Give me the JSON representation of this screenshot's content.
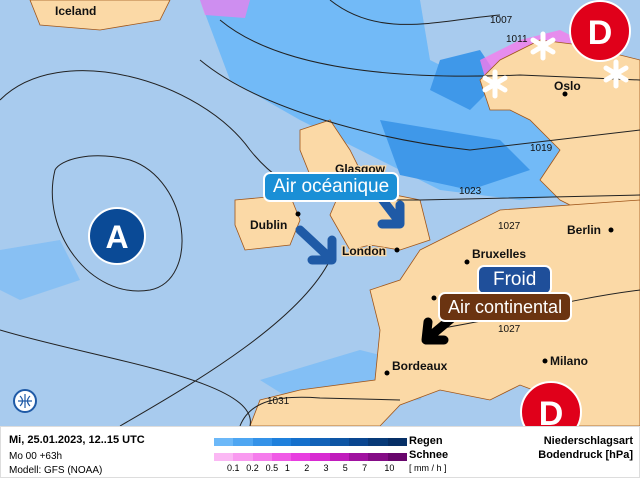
{
  "map": {
    "cities": [
      {
        "name": "Iceland"
      },
      {
        "name": "Oslo"
      },
      {
        "name": "Glasgow"
      },
      {
        "name": "Dublin"
      },
      {
        "name": "London"
      },
      {
        "name": "Bruxelles"
      },
      {
        "name": "Berlin"
      },
      {
        "name": "Bordeaux"
      },
      {
        "name": "Milano"
      }
    ],
    "isobars": [
      "1007",
      "1011",
      "1019",
      "1023",
      "1027",
      "1027",
      "1031"
    ],
    "pressure_systems": [
      {
        "label": "A",
        "type": "high",
        "color": "#0a4a96"
      },
      {
        "label": "D",
        "type": "low",
        "color": "#e0001a"
      },
      {
        "label": "D",
        "type": "low",
        "color": "#e0001a"
      }
    ],
    "annotations": {
      "oceanic": "Air océanique",
      "cold": "Froid",
      "continental": "Air continental"
    },
    "colors": {
      "ocean": "#a8cbee",
      "land": "#fbd9a6",
      "oceanic_label": "#1a8fd6",
      "cold_label": "#1f4f9a",
      "continental_label": "#6b3411"
    }
  },
  "legend": {
    "date": "Mi, 25.01.2023, 12..15 UTC",
    "run": "Mo 00 +63h",
    "model": "Modell: GFS (NOAA)",
    "rain_label": "Regen",
    "snow_label": "Schnee",
    "unit": "[ mm / h ]",
    "ticks": [
      "0.1",
      "0.2",
      "0.5",
      "1",
      "2",
      "3",
      "5",
      "7",
      "10"
    ],
    "type_label": "Niederschlagsart",
    "pressure_label": "Bodendruck [hPa]",
    "rain_colors": [
      "#6cb8f8",
      "#4ea6f2",
      "#3492e8",
      "#1f80dc",
      "#1570cc",
      "#1262b8",
      "#0e55a4",
      "#0a4690",
      "#083a78",
      "#062f66"
    ],
    "snow_colors": [
      "#fbb8f4",
      "#f99af0",
      "#f57cec",
      "#f05ae6",
      "#e83ee0",
      "#d82ad2",
      "#c01cbc",
      "#a012a0",
      "#840c86",
      "#68066c"
    ]
  }
}
